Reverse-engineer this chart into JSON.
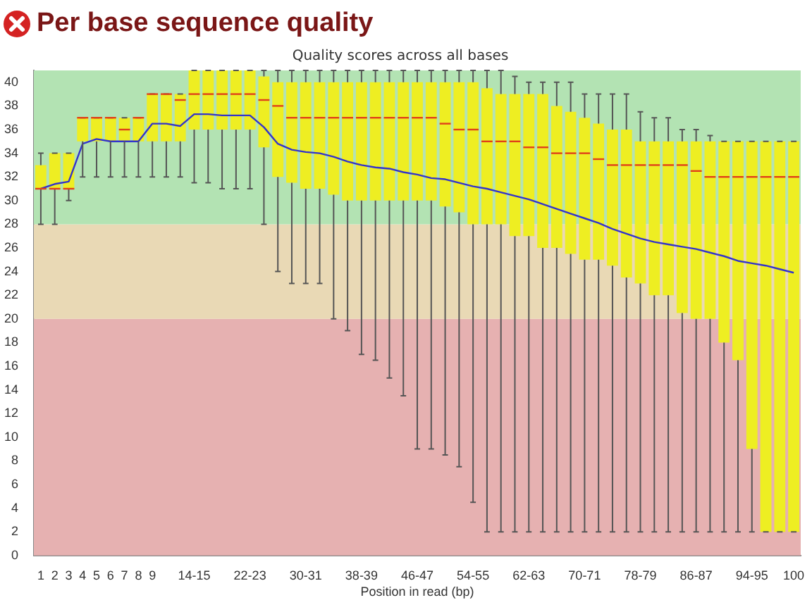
{
  "chart_data": {
    "type": "box",
    "title": "Per base sequence quality",
    "subtitle": "Quality scores across all bases",
    "xlabel": "Position in read (bp)",
    "categories": [
      "1",
      "2",
      "3",
      "4",
      "5",
      "6",
      "7",
      "8",
      "9",
      null,
      null,
      "14-15",
      null,
      null,
      null,
      "22-23",
      null,
      null,
      null,
      "30-31",
      null,
      null,
      null,
      "38-39",
      null,
      null,
      null,
      "46-47",
      null,
      null,
      null,
      "54-55",
      null,
      null,
      null,
      "62-63",
      null,
      null,
      null,
      "70-71",
      null,
      null,
      null,
      "78-79",
      null,
      null,
      null,
      "86-87",
      null,
      null,
      null,
      "94-95",
      null,
      null,
      "100"
    ],
    "ylim": [
      0,
      41
    ],
    "yticks": [
      0,
      2,
      4,
      6,
      8,
      10,
      12,
      14,
      16,
      18,
      20,
      22,
      24,
      26,
      28,
      30,
      32,
      34,
      36,
      38,
      40
    ],
    "grid": false,
    "legend": false,
    "bands": [
      {
        "axis": "y",
        "from": 0,
        "to": 20,
        "color": "#e6b1b1"
      },
      {
        "axis": "y",
        "from": 20,
        "to": 28,
        "color": "#e9d9b5"
      },
      {
        "axis": "y",
        "from": 28,
        "to": 41,
        "color": "#b3e3b3"
      }
    ],
    "series": [
      {
        "color": "#eeee22",
        "boxes": [
          {
            "low": 28,
            "q1": 31,
            "median": 31,
            "q3": 33,
            "high": 34
          },
          {
            "low": 28,
            "q1": 31,
            "median": 31,
            "q3": 34,
            "high": 34
          },
          {
            "low": 30,
            "q1": 31,
            "median": 31,
            "q3": 34,
            "high": 34
          },
          {
            "low": 32,
            "q1": 35,
            "median": 37,
            "q3": 37,
            "high": 37
          },
          {
            "low": 32,
            "q1": 35,
            "median": 37,
            "q3": 37,
            "high": 37
          },
          {
            "low": 32,
            "q1": 35,
            "median": 37,
            "q3": 37,
            "high": 37
          },
          {
            "low": 32,
            "q1": 35,
            "median": 36,
            "q3": 37,
            "high": 37
          },
          {
            "low": 32,
            "q1": 35,
            "median": 37,
            "q3": 37,
            "high": 37
          },
          {
            "low": 32,
            "q1": 35,
            "median": 39,
            "q3": 39,
            "high": 39
          },
          {
            "low": 32,
            "q1": 35,
            "median": 39,
            "q3": 39,
            "high": 39
          },
          {
            "low": 32,
            "q1": 35,
            "median": 38.5,
            "q3": 39,
            "high": 39
          },
          {
            "low": 31.5,
            "q1": 36,
            "median": 39,
            "q3": 41,
            "high": 41
          },
          {
            "low": 31.5,
            "q1": 36,
            "median": 39,
            "q3": 41,
            "high": 41
          },
          {
            "low": 31,
            "q1": 36,
            "median": 39,
            "q3": 41,
            "high": 41
          },
          {
            "low": 31,
            "q1": 36,
            "median": 39,
            "q3": 41,
            "high": 41
          },
          {
            "low": 31,
            "q1": 36,
            "median": 39,
            "q3": 41,
            "high": 41
          },
          {
            "low": 28,
            "q1": 34.5,
            "median": 38.5,
            "q3": 40.5,
            "high": 41
          },
          {
            "low": 24,
            "q1": 32,
            "median": 38,
            "q3": 40,
            "high": 41
          },
          {
            "low": 23,
            "q1": 31.5,
            "median": 37,
            "q3": 40,
            "high": 41
          },
          {
            "low": 23,
            "q1": 31,
            "median": 37,
            "q3": 40,
            "high": 41
          },
          {
            "low": 23,
            "q1": 31,
            "median": 37,
            "q3": 40,
            "high": 41
          },
          {
            "low": 20,
            "q1": 30.5,
            "median": 37,
            "q3": 40,
            "high": 41
          },
          {
            "low": 19,
            "q1": 30,
            "median": 37,
            "q3": 40,
            "high": 41
          },
          {
            "low": 17,
            "q1": 30,
            "median": 37,
            "q3": 40,
            "high": 41
          },
          {
            "low": 16.5,
            "q1": 30,
            "median": 37,
            "q3": 40,
            "high": 41
          },
          {
            "low": 15,
            "q1": 30,
            "median": 37,
            "q3": 40,
            "high": 41
          },
          {
            "low": 13.5,
            "q1": 30,
            "median": 37,
            "q3": 40,
            "high": 41
          },
          {
            "low": 9,
            "q1": 30,
            "median": 37,
            "q3": 40,
            "high": 41
          },
          {
            "low": 9,
            "q1": 30,
            "median": 37,
            "q3": 40,
            "high": 41
          },
          {
            "low": 8.5,
            "q1": 29.5,
            "median": 36.5,
            "q3": 40,
            "high": 41
          },
          {
            "low": 7.5,
            "q1": 29,
            "median": 36,
            "q3": 40,
            "high": 41
          },
          {
            "low": 4.5,
            "q1": 28,
            "median": 36,
            "q3": 40,
            "high": 41
          },
          {
            "low": 2,
            "q1": 28,
            "median": 35,
            "q3": 39.5,
            "high": 41
          },
          {
            "low": 2,
            "q1": 28,
            "median": 35,
            "q3": 39,
            "high": 41
          },
          {
            "low": 2,
            "q1": 27,
            "median": 35,
            "q3": 39,
            "high": 40.5
          },
          {
            "low": 2,
            "q1": 27,
            "median": 34.5,
            "q3": 39,
            "high": 40
          },
          {
            "low": 2,
            "q1": 26,
            "median": 34.5,
            "q3": 39,
            "high": 40
          },
          {
            "low": 2,
            "q1": 26,
            "median": 34,
            "q3": 38,
            "high": 40
          },
          {
            "low": 2,
            "q1": 25.5,
            "median": 34,
            "q3": 37.5,
            "high": 40
          },
          {
            "low": 2,
            "q1": 25,
            "median": 34,
            "q3": 37,
            "high": 39
          },
          {
            "low": 2,
            "q1": 25,
            "median": 33.5,
            "q3": 36.5,
            "high": 39
          },
          {
            "low": 2,
            "q1": 24.5,
            "median": 33,
            "q3": 36,
            "high": 39
          },
          {
            "low": 2,
            "q1": 23.5,
            "median": 33,
            "q3": 36,
            "high": 39
          },
          {
            "low": 2,
            "q1": 23,
            "median": 33,
            "q3": 35,
            "high": 37.5
          },
          {
            "low": 2,
            "q1": 22,
            "median": 33,
            "q3": 35,
            "high": 37
          },
          {
            "low": 2,
            "q1": 22,
            "median": 33,
            "q3": 35,
            "high": 37
          },
          {
            "low": 2,
            "q1": 20.5,
            "median": 33,
            "q3": 35,
            "high": 36
          },
          {
            "low": 2,
            "q1": 20,
            "median": 32.5,
            "q3": 35,
            "high": 36
          },
          {
            "low": 2,
            "q1": 20,
            "median": 32,
            "q3": 35,
            "high": 35.5
          },
          {
            "low": 2,
            "q1": 18,
            "median": 32,
            "q3": 35,
            "high": 35
          },
          {
            "low": 2,
            "q1": 16.5,
            "median": 32,
            "q3": 35,
            "high": 35
          },
          {
            "low": 2,
            "q1": 9,
            "median": 32,
            "q3": 35,
            "high": 35
          },
          {
            "low": 2,
            "q1": 2,
            "median": 32,
            "q3": 35,
            "high": 35
          },
          {
            "low": 2,
            "q1": 2,
            "median": 32,
            "q3": 35,
            "high": 35
          },
          {
            "low": 2,
            "q1": 2,
            "median": 32,
            "q3": 35,
            "high": 35
          }
        ]
      },
      {
        "type": "line",
        "color": "#3333cc",
        "values": [
          31,
          31.4,
          31.6,
          34.8,
          35.2,
          35,
          35,
          35,
          36.5,
          36.5,
          36.3,
          37.3,
          37.3,
          37.2,
          37.2,
          37.2,
          36.2,
          34.8,
          34.3,
          34.1,
          34,
          33.7,
          33.3,
          33,
          32.8,
          32.7,
          32.4,
          32.2,
          31.9,
          31.8,
          31.5,
          31.2,
          31,
          30.7,
          30.4,
          30.1,
          29.7,
          29.3,
          28.9,
          28.5,
          28.1,
          27.6,
          27.2,
          26.8,
          26.5,
          26.3,
          26.1,
          25.9,
          25.6,
          25.3,
          24.9,
          24.7,
          24.5,
          24.2,
          23.9
        ]
      }
    ]
  }
}
